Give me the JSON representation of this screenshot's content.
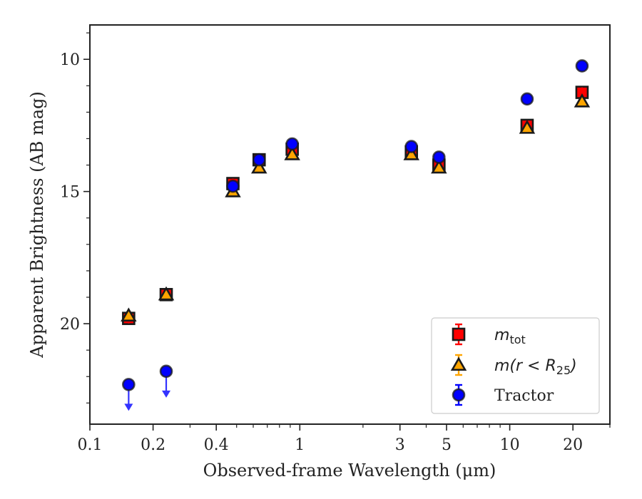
{
  "chart_data": {
    "type": "scatter",
    "title": "",
    "xlabel": "Observed-frame Wavelength (μm)",
    "ylabel": "Apparent Brightness (AB mag)",
    "xscale": "log",
    "xlim": [
      0.1,
      30
    ],
    "ylim": [
      23.8,
      8.7
    ],
    "y_inverted": true,
    "xticks": [
      {
        "value": 0.1,
        "label": "0.1"
      },
      {
        "value": 0.2,
        "label": "0.2"
      },
      {
        "value": 0.4,
        "label": "0.4"
      },
      {
        "value": 1,
        "label": "1"
      },
      {
        "value": 3,
        "label": "3"
      },
      {
        "value": 5,
        "label": "5"
      },
      {
        "value": 10,
        "label": "10"
      },
      {
        "value": 20,
        "label": "20"
      }
    ],
    "yticks": [
      {
        "value": 10,
        "label": "10"
      },
      {
        "value": 15,
        "label": "15"
      },
      {
        "value": 20,
        "label": "20"
      }
    ],
    "legend_position": "lower-right",
    "series": [
      {
        "name_main": "m",
        "name_sub": "tot",
        "name_tail": "",
        "marker": "square",
        "color": "#ff0000",
        "x": [
          0.153,
          0.231,
          0.48,
          0.64,
          0.92,
          3.4,
          4.6,
          12.1,
          22.1
        ],
        "y": [
          19.8,
          18.9,
          14.7,
          13.8,
          13.4,
          13.5,
          14.0,
          12.5,
          11.25
        ]
      },
      {
        "name_main": "m(r < R",
        "name_sub": "25",
        "name_tail": ")",
        "marker": "triangle",
        "color": "#ffa500",
        "x": [
          0.153,
          0.231,
          0.48,
          0.64,
          0.92,
          3.4,
          4.6,
          12.1,
          22.1
        ],
        "y": [
          19.7,
          18.9,
          15.0,
          14.1,
          13.6,
          13.6,
          14.1,
          12.6,
          11.6
        ]
      },
      {
        "name_main": "Tractor",
        "name_sub": "",
        "name_tail": "",
        "marker": "circle",
        "color": "#0000ff",
        "x": [
          0.153,
          0.231,
          0.48,
          0.64,
          0.92,
          3.4,
          4.6,
          12.1,
          22.1
        ],
        "y": [
          22.3,
          21.8,
          14.8,
          13.8,
          13.2,
          13.3,
          13.7,
          11.5,
          10.25
        ],
        "upper_limit": [
          true,
          true,
          false,
          false,
          false,
          false,
          false,
          false,
          false
        ]
      }
    ]
  }
}
